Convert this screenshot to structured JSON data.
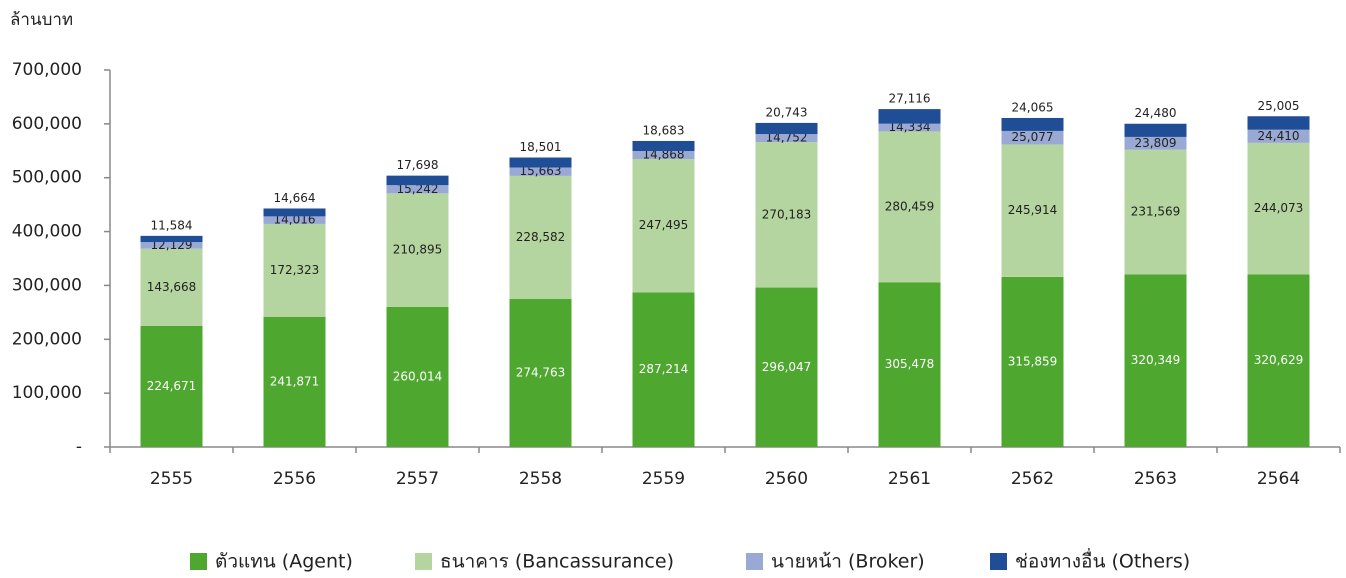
{
  "chart_data": {
    "type": "stacked_bar",
    "y_label": "ล้านบาท",
    "categories": [
      "2555",
      "2556",
      "2557",
      "2558",
      "2559",
      "2560",
      "2561",
      "2562",
      "2563",
      "2564"
    ],
    "series": [
      {
        "name": "ตัวแทน (Agent)",
        "color": "#4ea72e",
        "values": [
          224671,
          241871,
          260014,
          274763,
          287214,
          296047,
          305478,
          315859,
          320349,
          320629
        ],
        "value_labels": [
          "224,671",
          "241,871",
          "260,014",
          "274,763",
          "287,214",
          "296,047",
          "305,478",
          "315,859",
          "320,349",
          "320,629"
        ]
      },
      {
        "name": "ธนาคาร (Bancassurance)",
        "color": "#b5d5a0",
        "values": [
          143668,
          172323,
          210895,
          228582,
          247495,
          270183,
          280459,
          245914,
          231569,
          244073
        ],
        "value_labels": [
          "143,668",
          "172,323",
          "210,895",
          "228,582",
          "247,495",
          "270,183",
          "280,459",
          "245,914",
          "231,569",
          "244,073"
        ]
      },
      {
        "name": "นายหน้า (Broker)",
        "color": "#9aa9d3",
        "values": [
          12129,
          14016,
          15242,
          15663,
          14868,
          14752,
          14334,
          25077,
          23809,
          24410
        ],
        "value_labels": [
          "12,129",
          "14,016",
          "15,242",
          "15,663",
          "14,868",
          "14,752",
          "14,334",
          "25,077",
          "23,809",
          "24,410"
        ]
      },
      {
        "name": "ช่องทางอื่น (Others)",
        "color": "#1f4e96",
        "values": [
          11584,
          14664,
          17698,
          18501,
          18683,
          20743,
          27116,
          24065,
          24480,
          25005
        ],
        "value_labels": [
          "11,584",
          "14,664",
          "17,698",
          "18,501",
          "18,683",
          "20,743",
          "27,116",
          "24,065",
          "24,480",
          "25,005"
        ]
      }
    ],
    "ylim": [
      0,
      700000
    ],
    "yticks": [
      {
        "value": 0,
        "label": "-"
      },
      {
        "value": 100000,
        "label": "100,000"
      },
      {
        "value": 200000,
        "label": "200,000"
      },
      {
        "value": 300000,
        "label": "300,000"
      },
      {
        "value": 400000,
        "label": "400,000"
      },
      {
        "value": 500000,
        "label": "500,000"
      },
      {
        "value": 600000,
        "label": "600,000"
      },
      {
        "value": 700000,
        "label": "700,000"
      }
    ],
    "grid": false,
    "legend": "bottom"
  }
}
